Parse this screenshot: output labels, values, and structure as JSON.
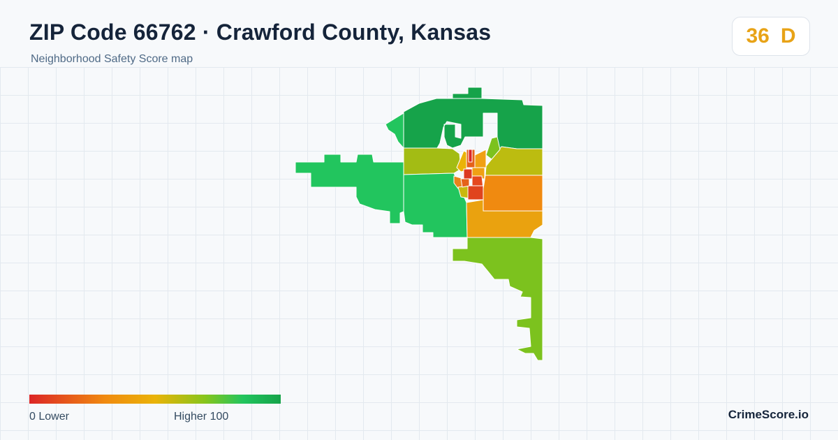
{
  "header": {
    "title": "ZIP Code 66762 · Crawford County, Kansas",
    "subtitle": "Neighborhood Safety Score map"
  },
  "score_badge": {
    "score": "36",
    "grade": "D",
    "color": "#e8a317"
  },
  "legend": {
    "low_label": "0  Lower",
    "high_label": "Higher  100",
    "colors": [
      "#dc2626",
      "#f08a10",
      "#eab308",
      "#86c51c",
      "#22c55e",
      "#16a34a"
    ]
  },
  "brand": {
    "name": "CrimeScore.io"
  }
}
